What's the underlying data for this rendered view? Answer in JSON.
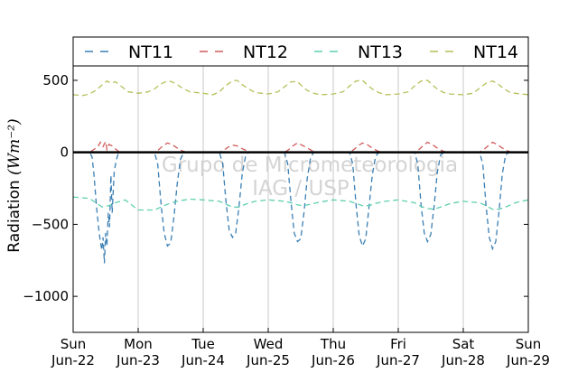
{
  "chart_data": {
    "type": "line",
    "title": "",
    "ylabel": "Radiation",
    "ylabel_unit": "(Wm⁻²)",
    "xlabel": "",
    "ylim": [
      -1250,
      600
    ],
    "xlim": [
      0,
      7
    ],
    "yticks": [
      500,
      0,
      -500,
      -1000
    ],
    "ytick_labels": [
      "500",
      "0",
      "−500",
      "−1000"
    ],
    "xticks": [
      {
        "x": 0,
        "day": "Sun",
        "date": "Jun-22"
      },
      {
        "x": 1,
        "day": "Mon",
        "date": "Jun-23"
      },
      {
        "x": 2,
        "day": "Tue",
        "date": "Jun-24"
      },
      {
        "x": 3,
        "day": "Wed",
        "date": "Jun-25"
      },
      {
        "x": 4,
        "day": "Thu",
        "date": "Jun-26"
      },
      {
        "x": 5,
        "day": "Fri",
        "date": "Jun-27"
      },
      {
        "x": 6,
        "day": "Sat",
        "date": "Jun-28"
      },
      {
        "x": 7,
        "day": "Sun",
        "date": "Jun-29"
      }
    ],
    "grid": "vertical",
    "legend_position": "top",
    "zero_line": true,
    "watermark": [
      "Grupo de Micrometeorologia",
      "IAG / USP"
    ],
    "series": [
      {
        "name": "NT11",
        "color": "#3a7fb4",
        "x": [
          0.0,
          0.25,
          0.29,
          0.32,
          0.36,
          0.4,
          0.42,
          0.44,
          0.46,
          0.48,
          0.5,
          0.52,
          0.54,
          0.56,
          0.58,
          0.6,
          0.63,
          0.66,
          0.7,
          1.0,
          1.25,
          1.3,
          1.35,
          1.4,
          1.45,
          1.5,
          1.55,
          1.6,
          1.65,
          1.7,
          2.0,
          2.25,
          2.3,
          2.35,
          2.4,
          2.45,
          2.5,
          2.55,
          2.6,
          2.65,
          2.7,
          3.0,
          3.25,
          3.3,
          3.35,
          3.4,
          3.45,
          3.5,
          3.55,
          3.6,
          3.65,
          3.7,
          4.0,
          4.25,
          4.3,
          4.35,
          4.4,
          4.45,
          4.5,
          4.55,
          4.6,
          4.65,
          4.7,
          5.0,
          5.25,
          5.3,
          5.35,
          5.4,
          5.45,
          5.5,
          5.55,
          5.6,
          5.65,
          5.7,
          6.0,
          6.25,
          6.3,
          6.35,
          6.4,
          6.45,
          6.5,
          6.55,
          6.6,
          6.65,
          6.7,
          7.0
        ],
        "y": [
          0,
          0,
          -30,
          -150,
          -380,
          -560,
          -620,
          -680,
          -590,
          -770,
          -560,
          -650,
          -420,
          -520,
          -160,
          -420,
          -140,
          -60,
          0,
          0,
          0,
          -80,
          -350,
          -560,
          -650,
          -630,
          -450,
          -220,
          -50,
          0,
          0,
          0,
          -80,
          -340,
          -540,
          -590,
          -560,
          -380,
          -150,
          -30,
          0,
          0,
          0,
          -80,
          -340,
          -560,
          -620,
          -600,
          -420,
          -180,
          -40,
          0,
          0,
          0,
          -80,
          -360,
          -580,
          -650,
          -600,
          -380,
          -160,
          -30,
          0,
          0,
          0,
          -80,
          -360,
          -560,
          -620,
          -570,
          -380,
          -140,
          -20,
          0,
          0,
          0,
          -80,
          -370,
          -590,
          -670,
          -620,
          -410,
          -150,
          -20,
          0,
          0
        ]
      },
      {
        "name": "NT12",
        "color": "#d05a5a",
        "x": [
          0.0,
          0.25,
          0.32,
          0.38,
          0.42,
          0.46,
          0.5,
          0.52,
          0.55,
          0.6,
          0.66,
          0.72,
          1.0,
          1.25,
          1.32,
          1.38,
          1.45,
          1.52,
          1.6,
          1.68,
          1.75,
          2.0,
          2.25,
          2.32,
          2.38,
          2.45,
          2.52,
          2.6,
          2.68,
          2.75,
          3.0,
          3.25,
          3.32,
          3.38,
          3.45,
          3.52,
          3.6,
          3.68,
          3.75,
          4.0,
          4.25,
          4.32,
          4.38,
          4.45,
          4.52,
          4.6,
          4.68,
          4.75,
          5.0,
          5.25,
          5.32,
          5.38,
          5.45,
          5.52,
          5.6,
          5.68,
          5.75,
          6.0,
          6.25,
          6.32,
          6.38,
          6.45,
          6.52,
          6.6,
          6.68,
          6.75,
          7.0
        ],
        "y": [
          0,
          0,
          20,
          40,
          70,
          40,
          75,
          20,
          55,
          45,
          20,
          0,
          0,
          0,
          20,
          45,
          65,
          55,
          30,
          10,
          0,
          0,
          0,
          15,
          35,
          50,
          45,
          25,
          10,
          0,
          0,
          0,
          20,
          45,
          65,
          50,
          30,
          10,
          0,
          0,
          0,
          20,
          45,
          65,
          55,
          30,
          10,
          0,
          0,
          0,
          20,
          45,
          70,
          55,
          30,
          10,
          0,
          0,
          0,
          20,
          45,
          70,
          55,
          30,
          10,
          0,
          0
        ]
      },
      {
        "name": "NT13",
        "color": "#5fcfb0",
        "x": [
          0.0,
          0.25,
          0.35,
          0.45,
          0.55,
          0.65,
          0.8,
          1.0,
          1.25,
          1.35,
          1.45,
          1.55,
          1.65,
          1.8,
          2.0,
          2.25,
          2.35,
          2.45,
          2.55,
          2.65,
          2.8,
          3.0,
          3.25,
          3.35,
          3.45,
          3.55,
          3.65,
          3.8,
          4.0,
          4.25,
          4.35,
          4.45,
          4.55,
          4.65,
          4.8,
          5.0,
          5.25,
          5.35,
          5.45,
          5.55,
          5.65,
          5.8,
          6.0,
          6.25,
          6.35,
          6.45,
          6.55,
          6.65,
          6.8,
          7.0
        ],
        "y": [
          -310,
          -320,
          -350,
          -380,
          -370,
          -350,
          -330,
          -400,
          -400,
          -380,
          -360,
          -345,
          -335,
          -325,
          -330,
          -340,
          -360,
          -380,
          -380,
          -360,
          -340,
          -330,
          -340,
          -350,
          -365,
          -370,
          -360,
          -345,
          -330,
          -340,
          -355,
          -370,
          -370,
          -355,
          -340,
          -330,
          -350,
          -375,
          -390,
          -395,
          -380,
          -355,
          -340,
          -350,
          -370,
          -395,
          -395,
          -380,
          -350,
          -330
        ]
      },
      {
        "name": "NT14",
        "color": "#b6bf5a",
        "x": [
          0.0,
          0.15,
          0.25,
          0.35,
          0.45,
          0.52,
          0.58,
          0.65,
          0.75,
          0.85,
          1.0,
          1.15,
          1.25,
          1.35,
          1.45,
          1.52,
          1.6,
          1.7,
          1.8,
          2.0,
          2.15,
          2.25,
          2.35,
          2.45,
          2.52,
          2.6,
          2.7,
          2.8,
          3.0,
          3.15,
          3.25,
          3.35,
          3.45,
          3.52,
          3.6,
          3.7,
          3.8,
          4.0,
          4.15,
          4.25,
          4.35,
          4.45,
          4.52,
          4.6,
          4.7,
          4.8,
          5.0,
          5.15,
          5.25,
          5.35,
          5.45,
          5.52,
          5.6,
          5.7,
          5.8,
          6.0,
          6.15,
          6.25,
          6.35,
          6.45,
          6.52,
          6.6,
          6.7,
          6.8,
          7.0
        ],
        "y": [
          400,
          395,
          405,
          430,
          470,
          495,
          480,
          490,
          455,
          420,
          410,
          420,
          440,
          475,
          495,
          490,
          470,
          440,
          420,
          410,
          400,
          420,
          465,
          495,
          500,
          470,
          440,
          415,
          405,
          420,
          455,
          490,
          490,
          460,
          430,
          410,
          400,
          405,
          420,
          460,
          495,
          500,
          470,
          440,
          415,
          400,
          405,
          420,
          460,
          495,
          500,
          470,
          440,
          415,
          405,
          400,
          410,
          445,
          480,
          495,
          480,
          450,
          420,
          410,
          400
        ]
      }
    ]
  }
}
